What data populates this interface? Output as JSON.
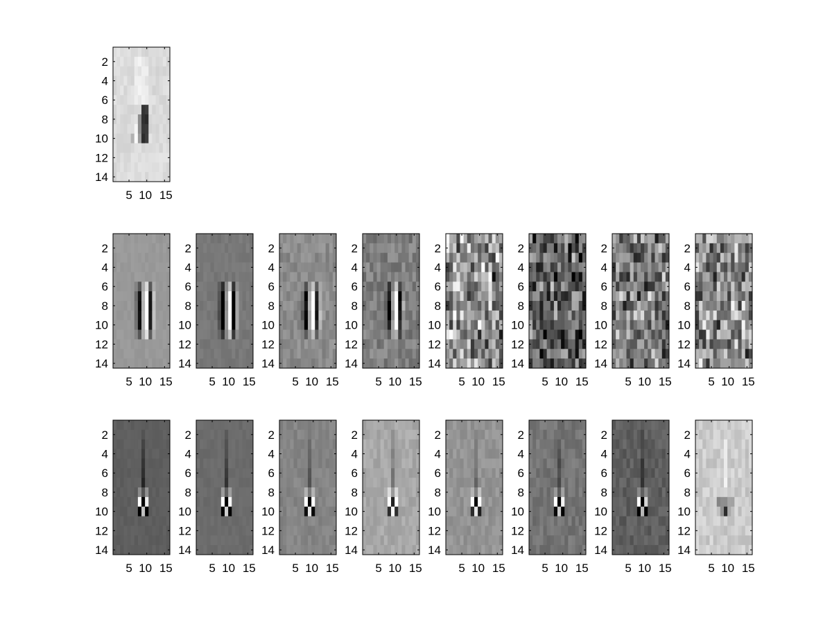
{
  "chart_data": {
    "type": "heatmap",
    "layout": {
      "rows": 3,
      "cols": 8
    },
    "colormap": "gray",
    "image_size": {
      "rows": 14,
      "cols": 16
    },
    "y_ticks": [
      "2",
      "4",
      "6",
      "8",
      "10",
      "12",
      "14"
    ],
    "x_ticks": [
      "5",
      "10",
      "15"
    ],
    "panels": [
      {
        "row": 1,
        "col": 1,
        "background": 0.86,
        "contrast": 0.55,
        "pattern": "blob",
        "noise": 0.04
      },
      {
        "row": 2,
        "col": 1,
        "background": 0.6,
        "contrast": 0.55,
        "pattern": "stripes",
        "noise": 0.02
      },
      {
        "row": 2,
        "col": 2,
        "background": 0.47,
        "contrast": 0.55,
        "pattern": "stripes",
        "noise": 0.03
      },
      {
        "row": 2,
        "col": 3,
        "background": 0.55,
        "contrast": 0.5,
        "pattern": "stripes",
        "noise": 0.07
      },
      {
        "row": 2,
        "col": 4,
        "background": 0.5,
        "contrast": 0.45,
        "pattern": "stripes",
        "noise": 0.1
      },
      {
        "row": 2,
        "col": 5,
        "background": 0.55,
        "contrast": 0.3,
        "pattern": "noise",
        "noise": 0.22
      },
      {
        "row": 2,
        "col": 6,
        "background": 0.38,
        "contrast": 0.2,
        "pattern": "noise",
        "noise": 0.25
      },
      {
        "row": 2,
        "col": 7,
        "background": 0.48,
        "contrast": 0.2,
        "pattern": "noise",
        "noise": 0.25
      },
      {
        "row": 2,
        "col": 8,
        "background": 0.55,
        "contrast": 0.2,
        "pattern": "noise",
        "noise": 0.27
      },
      {
        "row": 3,
        "col": 1,
        "background": 0.37,
        "contrast": 0.55,
        "pattern": "spike",
        "noise": 0.02
      },
      {
        "row": 3,
        "col": 2,
        "background": 0.42,
        "contrast": 0.55,
        "pattern": "spike",
        "noise": 0.02
      },
      {
        "row": 3,
        "col": 3,
        "background": 0.52,
        "contrast": 0.5,
        "pattern": "spike",
        "noise": 0.04
      },
      {
        "row": 3,
        "col": 4,
        "background": 0.66,
        "contrast": 0.5,
        "pattern": "spike",
        "noise": 0.05
      },
      {
        "row": 3,
        "col": 5,
        "background": 0.58,
        "contrast": 0.5,
        "pattern": "spike",
        "noise": 0.05
      },
      {
        "row": 3,
        "col": 6,
        "background": 0.46,
        "contrast": 0.5,
        "pattern": "spike",
        "noise": 0.06
      },
      {
        "row": 3,
        "col": 7,
        "background": 0.37,
        "contrast": 0.5,
        "pattern": "spike",
        "noise": 0.06
      },
      {
        "row": 3,
        "col": 8,
        "background": 0.8,
        "contrast": 0.5,
        "pattern": "spike-inv",
        "noise": 0.07
      }
    ]
  }
}
